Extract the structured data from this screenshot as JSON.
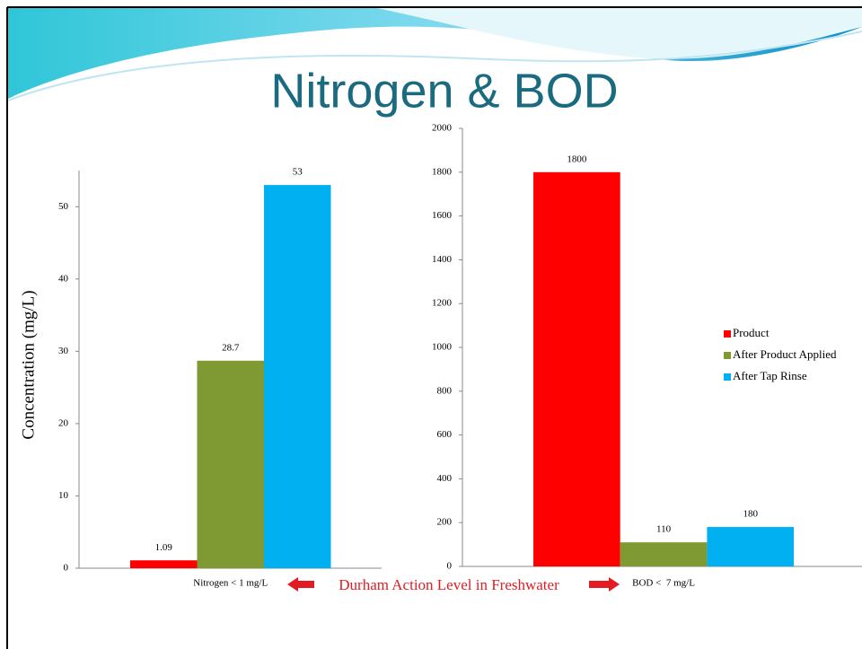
{
  "title": "Nitrogen & BOD",
  "annotation": "Durham Action Level in Freshwater",
  "chart_data": [
    {
      "type": "bar",
      "y_label": "Concentration (mg/L)",
      "categories": [
        "Nitrogen < 1 mg/L"
      ],
      "series": [
        {
          "color": "#ff0000",
          "values": [
            1.09
          ]
        },
        {
          "color": "#7f9a32",
          "values": [
            28.7
          ]
        },
        {
          "color": "#00b0f0",
          "values": [
            53
          ]
        }
      ],
      "ylim": [
        0,
        55
      ],
      "yticks": [
        0,
        10,
        20,
        30,
        40,
        50
      ]
    },
    {
      "type": "bar",
      "categories": [
        "BOD <  7 mg/L"
      ],
      "series": [
        {
          "name": "Product",
          "color": "#ff0000",
          "values": [
            1800
          ]
        },
        {
          "name": "After Product Applied",
          "color": "#7f9a32",
          "values": [
            110
          ]
        },
        {
          "name": "After Tap Rinse",
          "color": "#00b0f0",
          "values": [
            180
          ]
        }
      ],
      "ylim": [
        0,
        2000
      ],
      "yticks": [
        0,
        200,
        400,
        600,
        800,
        1000,
        1200,
        1400,
        1600,
        1800,
        2000
      ],
      "legend": "right"
    }
  ]
}
